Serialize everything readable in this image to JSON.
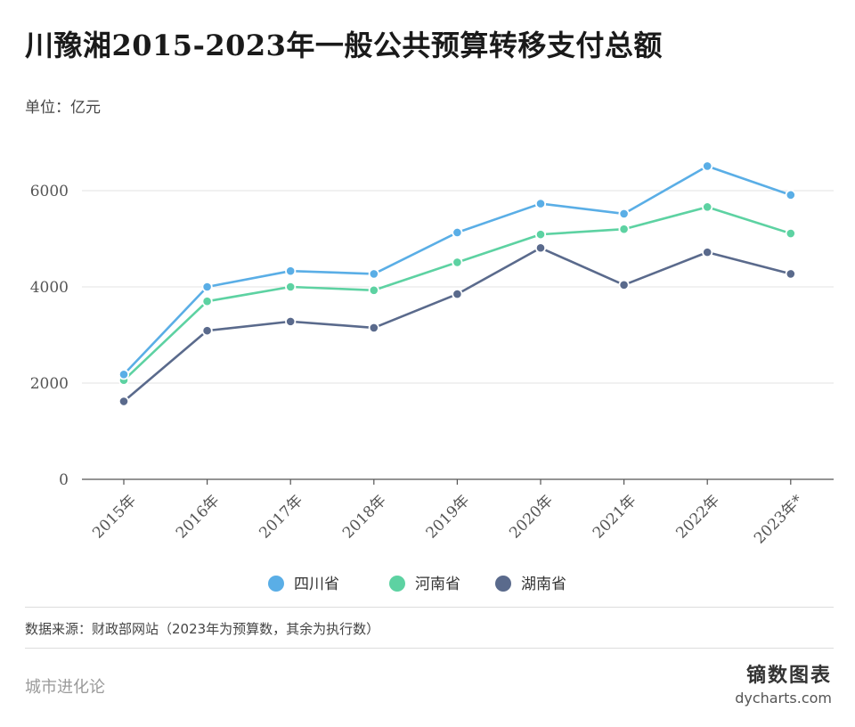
{
  "header": {
    "title": "川豫湘2015-2023年一般公共预算转移支付总额",
    "unit": "单位：亿元"
  },
  "footer": {
    "source": "数据来源：财政部网站（2023年为预算数，其余为执行数）",
    "publisher": "城市进化论",
    "brand_cn": "镝数图表",
    "brand_en": "dycharts.com"
  },
  "chart_data": {
    "type": "line",
    "title": "川豫湘2015-2023年一般公共预算转移支付总额",
    "xlabel": "",
    "ylabel": "",
    "unit": "亿元",
    "categories": [
      "2015年",
      "2016年",
      "2017年",
      "2018年",
      "2019年",
      "2020年",
      "2021年",
      "2022年",
      "2023年*"
    ],
    "ylim": [
      0,
      7000
    ],
    "yticks": [
      0,
      2000,
      4000,
      6000
    ],
    "grid": true,
    "legend_position": "bottom",
    "series": [
      {
        "name": "四川省",
        "color": "#5aaee6",
        "values": [
          2180,
          4000,
          4330,
          4270,
          5130,
          5730,
          5520,
          6510,
          5910
        ]
      },
      {
        "name": "河南省",
        "color": "#5dd2a2",
        "values": [
          2060,
          3700,
          4000,
          3930,
          4510,
          5090,
          5200,
          5660,
          5110
        ]
      },
      {
        "name": "湖南省",
        "color": "#5a6a8c",
        "values": [
          1620,
          3090,
          3280,
          3150,
          3850,
          4810,
          4040,
          4720,
          4270
        ]
      }
    ]
  }
}
